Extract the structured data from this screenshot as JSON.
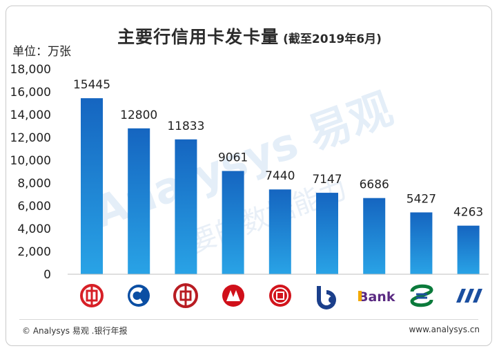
{
  "chart_data": {
    "type": "bar",
    "title": "主要行信用卡发卡量",
    "subtitle": "(截至2019年6月)",
    "ylabel": "单位：万张",
    "xlabel": "",
    "categories": [
      "工商银行",
      "建设银行",
      "中国银行",
      "招商银行",
      "中信银行",
      "交通银行",
      "光大银行",
      "浦发银行",
      "民生银行"
    ],
    "values": [
      15445,
      12800,
      11833,
      9061,
      7440,
      7147,
      6686,
      5427,
      4263
    ],
    "ylim": [
      0,
      18000
    ],
    "yticks": [
      "0",
      "2,000",
      "4,000",
      "6,000",
      "8,000",
      "10,000",
      "12,000",
      "14,000",
      "16,000",
      "18,000"
    ],
    "grid": false,
    "bar_color": "#1976d2"
  },
  "footer": {
    "left": "© Analysys 易观 .银行年报",
    "right": "www.analysys.cn"
  },
  "watermark": "Analysys 易观",
  "watermark_sub": "要的数据能力",
  "logo_bank_text": "Bank"
}
